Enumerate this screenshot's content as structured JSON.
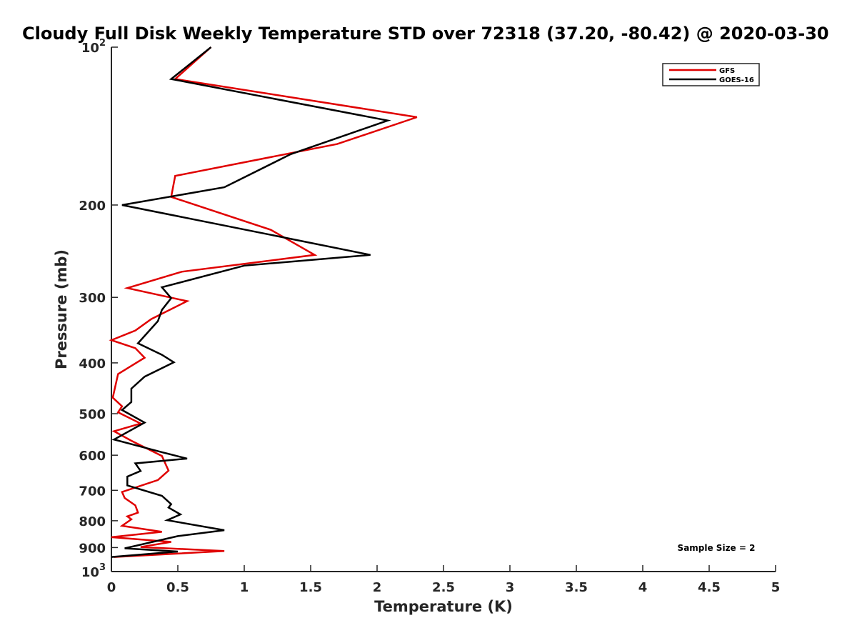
{
  "chart_data": {
    "type": "line",
    "title": "Cloudy Full Disk Weekly Temperature STD over 72318 (37.20, -80.42) @ 2020-03-30",
    "xlabel": "Temperature (K)",
    "ylabel": "Pressure (mb)",
    "xlim": [
      0,
      5
    ],
    "ylim": [
      100,
      1000
    ],
    "yscale": "log",
    "y_reversed": true,
    "x_ticks": [
      {
        "value": 0,
        "label": "0"
      },
      {
        "value": 0.5,
        "label": "0.5"
      },
      {
        "value": 1,
        "label": "1"
      },
      {
        "value": 1.5,
        "label": "1.5"
      },
      {
        "value": 2,
        "label": "2"
      },
      {
        "value": 2.5,
        "label": "2.5"
      },
      {
        "value": 3,
        "label": "3"
      },
      {
        "value": 3.5,
        "label": "3.5"
      },
      {
        "value": 4,
        "label": "4"
      },
      {
        "value": 4.5,
        "label": "4.5"
      },
      {
        "value": 5,
        "label": "5"
      }
    ],
    "y_ticks": [
      {
        "value": 100,
        "base": "10",
        "exp": "2"
      },
      {
        "value": 200,
        "base": "200",
        "exp": ""
      },
      {
        "value": 300,
        "base": "300",
        "exp": ""
      },
      {
        "value": 400,
        "base": "400",
        "exp": ""
      },
      {
        "value": 500,
        "base": "500",
        "exp": ""
      },
      {
        "value": 600,
        "base": "600",
        "exp": ""
      },
      {
        "value": 700,
        "base": "700",
        "exp": ""
      },
      {
        "value": 800,
        "base": "800",
        "exp": ""
      },
      {
        "value": 900,
        "base": "900",
        "exp": ""
      },
      {
        "value": 1000,
        "base": "10",
        "exp": "3"
      }
    ],
    "grid": false,
    "legend_position": "top-right",
    "series": [
      {
        "name": "GFS",
        "color": "#e00000",
        "points": [
          [
            0.75,
            100
          ],
          [
            0.48,
            115
          ],
          [
            2.3,
            136
          ],
          [
            1.7,
            153
          ],
          [
            0.48,
            176
          ],
          [
            0.45,
            193
          ],
          [
            1.2,
            223
          ],
          [
            1.53,
            249
          ],
          [
            0.53,
            268
          ],
          [
            0.12,
            288
          ],
          [
            0.57,
            305
          ],
          [
            0.3,
            330
          ],
          [
            0.18,
            347
          ],
          [
            0.0,
            362
          ],
          [
            0.18,
            375
          ],
          [
            0.25,
            391
          ],
          [
            0.05,
            420
          ],
          [
            0.01,
            466
          ],
          [
            0.08,
            484
          ],
          [
            0.05,
            497
          ],
          [
            0.22,
            522
          ],
          [
            0.02,
            540
          ],
          [
            0.15,
            563
          ],
          [
            0.38,
            602
          ],
          [
            0.43,
            642
          ],
          [
            0.35,
            669
          ],
          [
            0.08,
            705
          ],
          [
            0.1,
            724
          ],
          [
            0.18,
            748
          ],
          [
            0.2,
            772
          ],
          [
            0.12,
            785
          ],
          [
            0.15,
            795
          ],
          [
            0.08,
            818
          ],
          [
            0.38,
            840
          ],
          [
            0.0,
            860
          ],
          [
            0.45,
            878
          ],
          [
            0.22,
            898
          ],
          [
            0.85,
            914
          ],
          [
            0.02,
            938
          ]
        ]
      },
      {
        "name": "GOES-16",
        "color": "#000000",
        "points": [
          [
            0.75,
            100
          ],
          [
            0.45,
            115
          ],
          [
            2.08,
            138
          ],
          [
            1.35,
            160
          ],
          [
            0.85,
            185
          ],
          [
            0.08,
            200
          ],
          [
            1.2,
            228
          ],
          [
            1.95,
            249
          ],
          [
            1.0,
            261
          ],
          [
            0.38,
            287
          ],
          [
            0.45,
            301
          ],
          [
            0.38,
            317
          ],
          [
            0.35,
            333
          ],
          [
            0.2,
            367
          ],
          [
            0.38,
            386
          ],
          [
            0.47,
            399
          ],
          [
            0.25,
            425
          ],
          [
            0.15,
            448
          ],
          [
            0.15,
            475
          ],
          [
            0.08,
            492
          ],
          [
            0.25,
            520
          ],
          [
            0.02,
            560
          ],
          [
            0.38,
            592
          ],
          [
            0.57,
            609
          ],
          [
            0.18,
            622
          ],
          [
            0.22,
            643
          ],
          [
            0.12,
            659
          ],
          [
            0.12,
            685
          ],
          [
            0.38,
            717
          ],
          [
            0.45,
            744
          ],
          [
            0.43,
            755
          ],
          [
            0.52,
            778
          ],
          [
            0.42,
            798
          ],
          [
            0.85,
            834
          ],
          [
            0.5,
            856
          ],
          [
            0.1,
            903
          ],
          [
            0.5,
            916
          ],
          [
            0.0,
            938
          ]
        ]
      }
    ],
    "annotations": [
      {
        "text": "Sample Size = 2"
      }
    ]
  }
}
